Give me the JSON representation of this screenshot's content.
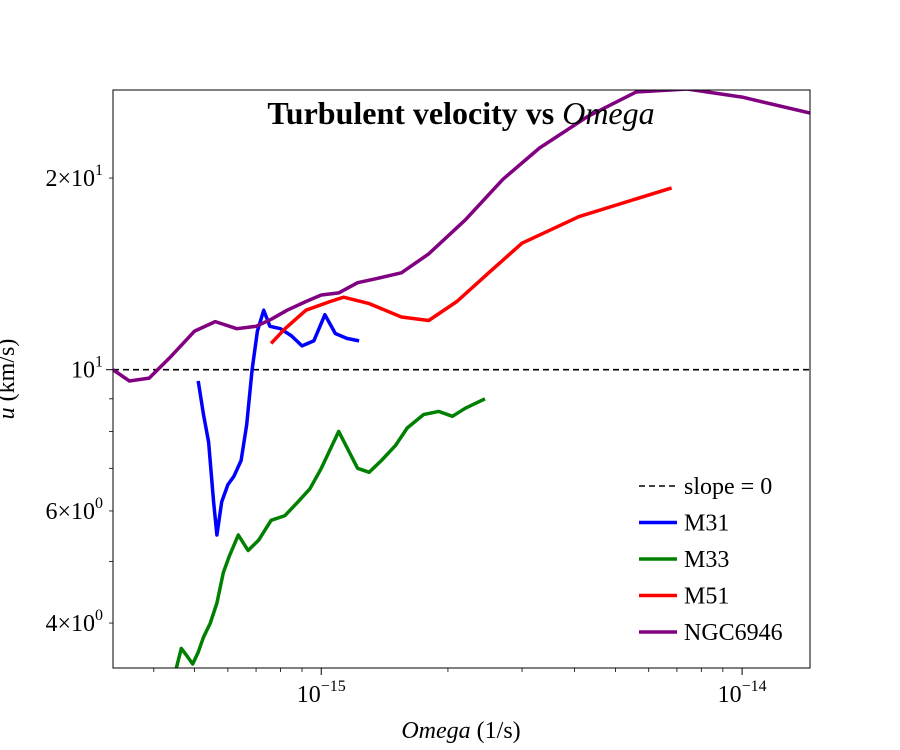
{
  "chart_data": {
    "type": "line",
    "title_main": "Turbulent velocity vs ",
    "title_italic": "Omega",
    "xlabel_italic": "Omega",
    "xlabel_unit": " (1/s)",
    "ylabel_italic": "u",
    "ylabel_unit": " (km/s)",
    "xscale": "log",
    "yscale": "log",
    "xlim": [
      3.2e-16,
      1.45e-14
    ],
    "ylim": [
      3.4,
      27.5
    ],
    "legend_position": "lower-right",
    "x_major_ticks": [
      {
        "value": 1e-15,
        "base": "10",
        "exp": "−15"
      },
      {
        "value": 1e-14,
        "base": "10",
        "exp": "−14"
      }
    ],
    "y_major_ticks": [
      {
        "value": 10,
        "base": "10",
        "exp": "1"
      }
    ],
    "y_minor_labeled_ticks": [
      {
        "value": 20,
        "mant": "2",
        "base": "10",
        "exp": "1"
      },
      {
        "value": 6,
        "mant": "6",
        "base": "10",
        "exp": "0"
      },
      {
        "value": 4,
        "mant": "4",
        "base": "10",
        "exp": "0"
      }
    ],
    "reference_line": {
      "name": "slope = 0",
      "y": 10,
      "color": "#000000",
      "style": "dashed"
    },
    "series": [
      {
        "name": "M31",
        "color": "#0000ff",
        "x": [
          5.1e-16,
          5.25e-16,
          5.4e-16,
          5.55e-16,
          5.65e-16,
          5.8e-16,
          6e-16,
          6.2e-16,
          6.45e-16,
          6.65e-16,
          6.85e-16,
          7.05e-16,
          7.3e-16,
          7.55e-16,
          8e-16,
          8.5e-16,
          9e-16,
          9.6e-16,
          1.02e-15,
          1.08e-15,
          1.15e-15,
          1.23e-15
        ],
        "y": [
          9.6,
          8.5,
          7.7,
          6.2,
          5.5,
          6.2,
          6.6,
          6.8,
          7.2,
          8.2,
          10.0,
          11.5,
          12.4,
          11.7,
          11.6,
          11.3,
          10.9,
          11.1,
          12.2,
          11.4,
          11.2,
          11.1
        ]
      },
      {
        "name": "M33",
        "color": "#008000",
        "x": [
          4.5e-16,
          4.65e-16,
          4.8e-16,
          4.95e-16,
          5.1e-16,
          5.25e-16,
          5.45e-16,
          5.65e-16,
          5.85e-16,
          6.05e-16,
          6.35e-16,
          6.7e-16,
          7.1e-16,
          7.6e-16,
          8.2e-16,
          8.8e-16,
          9.4e-16,
          1e-15,
          1.1e-15,
          1.22e-15,
          1.3e-15,
          1.39e-15,
          1.5e-15,
          1.6e-15,
          1.75e-15,
          1.9e-15,
          2.05e-15,
          2.2e-15,
          2.45e-15
        ],
        "y": [
          3.35,
          3.65,
          3.55,
          3.45,
          3.6,
          3.8,
          4.0,
          4.3,
          4.8,
          5.1,
          5.5,
          5.2,
          5.4,
          5.8,
          5.9,
          6.2,
          6.5,
          7.0,
          8.0,
          7.0,
          6.9,
          7.2,
          7.6,
          8.1,
          8.5,
          8.6,
          8.45,
          8.7,
          9.0
        ]
      },
      {
        "name": "M51",
        "color": "#ff0000",
        "x": [
          7.6e-16,
          8.2e-16,
          9.2e-16,
          1.05e-15,
          1.13e-15,
          1.3e-15,
          1.55e-15,
          1.8e-15,
          2.1e-15,
          2.5e-15,
          3e-15,
          4.1e-15,
          6.8e-15
        ],
        "y": [
          11.0,
          11.6,
          12.4,
          12.8,
          13.0,
          12.7,
          12.1,
          11.95,
          12.8,
          14.2,
          15.8,
          17.4,
          19.3
        ]
      },
      {
        "name": "NGC6946",
        "color": "#800080",
        "x": [
          3.2e-16,
          3.5e-16,
          3.9e-16,
          4.4e-16,
          5e-16,
          5.6e-16,
          6.3e-16,
          7e-16,
          7.6e-16,
          8.3e-16,
          9.2e-16,
          1e-15,
          1.1e-15,
          1.22e-15,
          1.35e-15,
          1.55e-15,
          1.8e-15,
          2.2e-15,
          2.7e-15,
          3.3e-15,
          4.3e-15,
          5.6e-15,
          7.4e-15,
          1e-14,
          1.45e-14
        ],
        "y": [
          10.0,
          9.6,
          9.7,
          10.5,
          11.5,
          11.9,
          11.6,
          11.7,
          12.0,
          12.4,
          12.8,
          13.1,
          13.2,
          13.7,
          13.9,
          14.2,
          15.2,
          17.2,
          19.9,
          22.3,
          25.0,
          27.3,
          27.6,
          26.8,
          25.3
        ]
      }
    ]
  }
}
